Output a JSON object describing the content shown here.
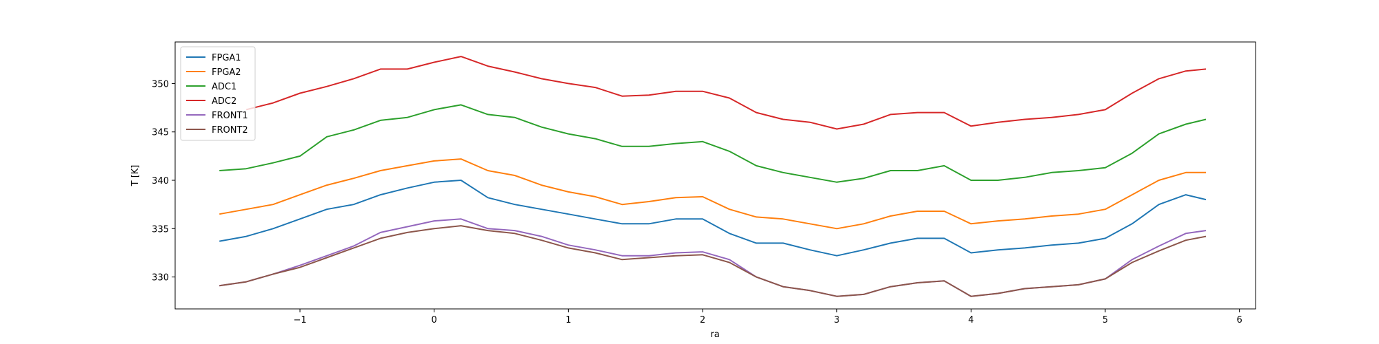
{
  "chart_data": {
    "type": "line",
    "xlabel": "ra",
    "ylabel": "T [K]",
    "xlim": [
      -1.93,
      6.12
    ],
    "ylim": [
      326.7,
      354.3
    ],
    "xticks": [
      {
        "value": -1,
        "label": "−1"
      },
      0,
      1,
      2,
      3,
      4,
      5,
      6
    ],
    "yticks": [
      330,
      335,
      340,
      345,
      350
    ],
    "legend": "upper left",
    "x": [
      -1.6,
      -1.4,
      -1.2,
      -1.0,
      -0.8,
      -0.6,
      -0.4,
      -0.2,
      0,
      0.2,
      0.4,
      0.6,
      0.8,
      1.0,
      1.2,
      1.4,
      1.6,
      1.8,
      2.0,
      2.2,
      2.4,
      2.6,
      2.8,
      3.0,
      3.2,
      3.4,
      3.6,
      3.8,
      4.0,
      4.2,
      4.4,
      4.6,
      4.8,
      5.0,
      5.2,
      5.4,
      5.6,
      5.75
    ],
    "series": [
      {
        "name": "FPGA1",
        "color": "#1f77b4",
        "values": [
          333.7,
          334.2,
          335,
          336,
          337,
          337.5,
          338.5,
          339.2,
          339.8,
          340,
          338.2,
          337.5,
          337,
          336.5,
          336,
          335.5,
          335.5,
          336,
          336,
          334.5,
          333.5,
          333.5,
          332.8,
          332.2,
          332.8,
          333.5,
          334,
          334,
          332.5,
          332.8,
          333,
          333.3,
          333.5,
          334,
          335.5,
          337.5,
          338.5,
          338
        ]
      },
      {
        "name": "FPGA2",
        "color": "#ff7f0e",
        "values": [
          336.5,
          337,
          337.5,
          338.5,
          339.5,
          340.2,
          341,
          341.5,
          342,
          342.2,
          341,
          340.5,
          339.5,
          338.8,
          338.3,
          337.5,
          337.8,
          338.2,
          338.3,
          337,
          336.2,
          336,
          335.5,
          335,
          335.5,
          336.3,
          336.8,
          336.8,
          335.5,
          335.8,
          336,
          336.3,
          336.5,
          337,
          338.5,
          340,
          340.8,
          340.8
        ]
      },
      {
        "name": "ADC1",
        "color": "#2ca02c",
        "values": [
          341,
          341.2,
          341.8,
          342.5,
          344.5,
          345.2,
          346.2,
          346.5,
          347.3,
          347.8,
          346.8,
          346.5,
          345.5,
          344.8,
          344.3,
          343.5,
          343.5,
          343.8,
          344,
          343,
          341.5,
          340.8,
          340.3,
          339.8,
          340.2,
          341,
          341,
          341.5,
          340,
          340,
          340.3,
          340.8,
          341,
          341.3,
          342.8,
          344.8,
          345.8,
          346.3
        ]
      },
      {
        "name": "ADC2",
        "color": "#d62728",
        "values": [
          null,
          347.3,
          348,
          349,
          349.7,
          350.5,
          351.5,
          351.5,
          352.2,
          352.8,
          351.8,
          351.2,
          350.5,
          350,
          349.6,
          348.7,
          348.8,
          349.2,
          349.2,
          348.5,
          347,
          346.3,
          346,
          345.3,
          345.8,
          346.8,
          347,
          347,
          345.6,
          346,
          346.3,
          346.5,
          346.8,
          347.3,
          349,
          350.5,
          351.3,
          351.5
        ]
      },
      {
        "name": "FRONT1",
        "color": "#9467bd",
        "values": [
          329.1,
          329.5,
          330.3,
          331.2,
          332.2,
          333.2,
          334.6,
          335.2,
          335.8,
          336,
          335,
          334.8,
          334.2,
          333.3,
          332.8,
          332.2,
          332.2,
          332.5,
          332.6,
          331.8,
          330,
          329,
          328.6,
          328,
          328.2,
          329,
          329.4,
          329.6,
          328,
          328.3,
          328.8,
          329,
          329.2,
          329.8,
          331.8,
          333.2,
          334.5,
          334.8
        ]
      },
      {
        "name": "FRONT2",
        "color": "#8c564b",
        "values": [
          329.1,
          329.5,
          330.3,
          331,
          332,
          333,
          334,
          334.6,
          335,
          335.3,
          334.8,
          334.5,
          333.8,
          333,
          332.5,
          331.8,
          332,
          332.2,
          332.3,
          331.5,
          330,
          329,
          328.6,
          328,
          328.2,
          329,
          329.4,
          329.6,
          328,
          328.3,
          328.8,
          329,
          329.2,
          329.8,
          331.5,
          332.7,
          333.8,
          334.2
        ]
      }
    ]
  }
}
